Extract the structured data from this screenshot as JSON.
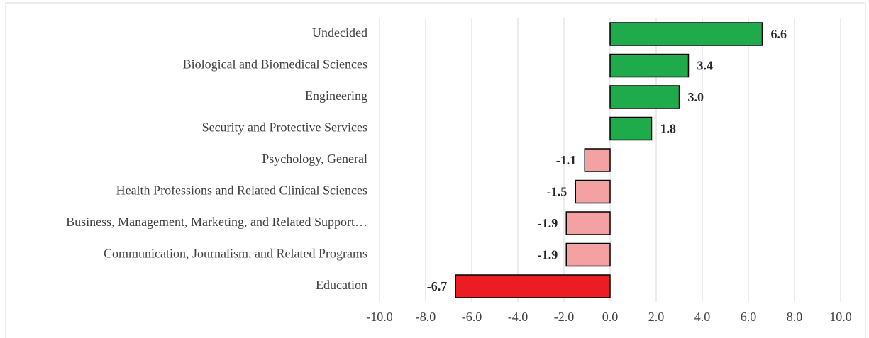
{
  "chart_data": {
    "type": "barh",
    "categories": [
      "Undecided",
      "Biological and Biomedical Sciences",
      "Engineering",
      "Security and Protective Services",
      "Psychology, General",
      "Health Professions and Related Clinical Sciences",
      "Business, Management, Marketing, and Related Support…",
      "Communication, Journalism, and Related Programs",
      "Education"
    ],
    "values": [
      6.6,
      3.4,
      3.0,
      1.8,
      -1.1,
      -1.5,
      -1.9,
      -1.9,
      -6.7
    ],
    "value_labels": [
      "6.6",
      "3.4",
      "3.0",
      "1.8",
      "-1.1",
      "-1.5",
      "-1.9",
      "-1.9",
      "-6.7"
    ],
    "colors": [
      "#1faa4b",
      "#1faa4b",
      "#1faa4b",
      "#1faa4b",
      "#f4a1a4",
      "#f4a1a4",
      "#f4a1a4",
      "#f4a1a4",
      "#ec1c24"
    ],
    "xlim": [
      -10,
      10
    ],
    "xticks": [
      {
        "value": -10,
        "label": "-10.0"
      },
      {
        "value": -8,
        "label": "-8.0"
      },
      {
        "value": -6,
        "label": "-6.0"
      },
      {
        "value": -4,
        "label": "-4.0"
      },
      {
        "value": -2,
        "label": "-2.0"
      },
      {
        "value": 0,
        "label": "0.0"
      },
      {
        "value": 2,
        "label": "2.0"
      },
      {
        "value": 4,
        "label": "4.0"
      },
      {
        "value": 6,
        "label": "6.0"
      },
      {
        "value": 8,
        "label": "8.0"
      },
      {
        "value": 10,
        "label": "10.0"
      }
    ],
    "grid": true
  }
}
